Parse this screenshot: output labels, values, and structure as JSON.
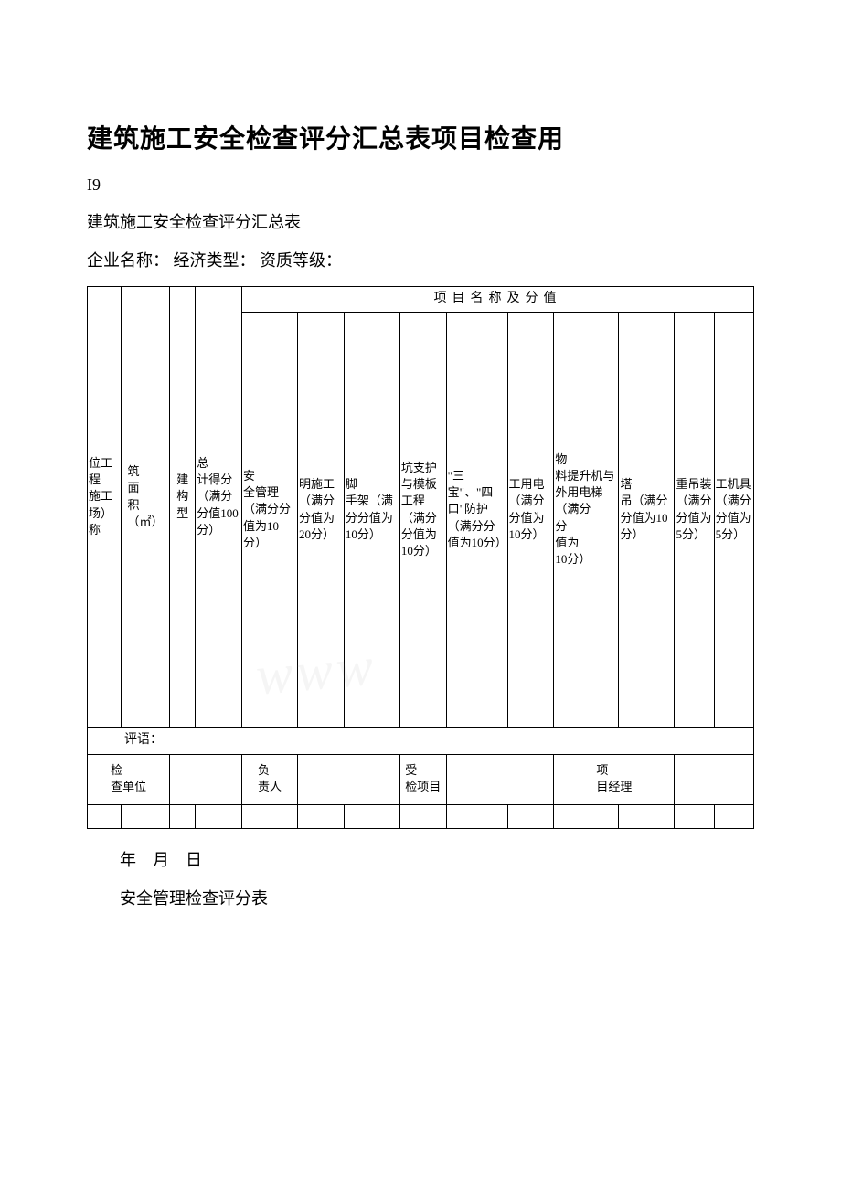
{
  "document": {
    "title": "建筑施工安全检查评分汇总表项目检查用",
    "code": "I9",
    "subtitle": "建筑施工安全检查评分汇总表",
    "info_line": "企业名称：  经济类型：  资质等级：",
    "date_line": "年　月　日",
    "section2": "安全管理检查评分表"
  },
  "table": {
    "group_header": "项目名称及分值",
    "columns": {
      "c1": "位工程\n施工\n场）\n称",
      "c2": "筑\n面\n积\n（㎡）",
      "c3": "建\n构\n型",
      "c4": "总\n计得分（满分分值100分）",
      "c5": "安\n全管理（满分分值为10分）",
      "c6": "明施工（满分分值为20分）",
      "c7": "脚\n手架（满分分值为10分）",
      "c8": "坑支护与模板工程（满分分值为10分）",
      "c9": "\"三宝\"、\"四口\"防护（满分分值为10分）",
      "c10": "工用电（满分分值为10分）",
      "c11": "物\n料提升机与外用电梯（满分\n分\n值为\n10分）",
      "c12": "塔\n吊（满分分值为10分）",
      "c13": "重吊装（满分分值为5分）",
      "c14": "工机具（满分分值为5分）"
    },
    "eval_label": "评语：",
    "sign": {
      "s1": "检\n查单位",
      "s2": "负\n责人",
      "s3": "受\n检项目",
      "s4": "项\n目经理"
    }
  },
  "style": {
    "background_color": "#ffffff",
    "text_color": "#000000",
    "border_color": "#000000",
    "title_fontsize": 28,
    "body_fontsize": 18,
    "table_fontsize": 13
  }
}
